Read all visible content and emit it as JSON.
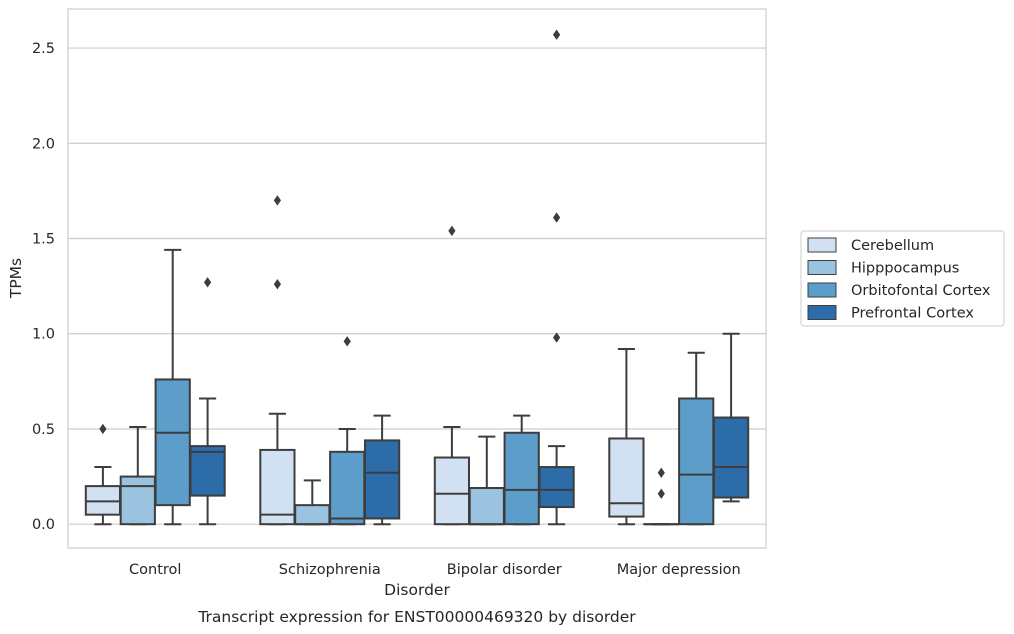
{
  "chart_data": {
    "type": "box",
    "caption": "Transcript expression for ENST00000469320 by disorder",
    "xlabel": "Disorder",
    "ylabel": "TPMs",
    "ylim": [
      -0.125,
      2.705
    ],
    "yticks": [
      "0.0",
      "0.5",
      "1.0",
      "1.5",
      "2.0",
      "2.5"
    ],
    "grid": true,
    "legend_position": "right",
    "categories": [
      "Control",
      "Schizophrenia",
      "Bipolar disorder",
      "Major depression"
    ],
    "series": [
      {
        "name": "Cerebellum",
        "color": "#d1e1f1",
        "boxes": [
          {
            "q1": 0.05,
            "median": 0.12,
            "q3": 0.2,
            "whisker_low": 0.0,
            "whisker_high": 0.3,
            "outliers": [
              0.5
            ]
          },
          {
            "q1": 0.0,
            "median": 0.05,
            "q3": 0.39,
            "whisker_low": 0.0,
            "whisker_high": 0.58,
            "outliers": [
              1.26,
              1.7
            ]
          },
          {
            "q1": 0.0,
            "median": 0.16,
            "q3": 0.35,
            "whisker_low": 0.0,
            "whisker_high": 0.51,
            "outliers": [
              1.54
            ]
          },
          {
            "q1": 0.04,
            "median": 0.11,
            "q3": 0.45,
            "whisker_low": 0.0,
            "whisker_high": 0.92,
            "outliers": []
          }
        ]
      },
      {
        "name": "Hipppocampus",
        "color": "#9bc2de",
        "boxes": [
          {
            "q1": 0.0,
            "median": 0.2,
            "q3": 0.25,
            "whisker_low": 0.0,
            "whisker_high": 0.51,
            "outliers": []
          },
          {
            "q1": 0.0,
            "median": 0.0,
            "q3": 0.1,
            "whisker_low": 0.0,
            "whisker_high": 0.23,
            "outliers": []
          },
          {
            "q1": 0.0,
            "median": 0.0,
            "q3": 0.19,
            "whisker_low": 0.0,
            "whisker_high": 0.46,
            "outliers": []
          },
          {
            "q1": 0.0,
            "median": 0.0,
            "q3": 0.0,
            "whisker_low": 0.0,
            "whisker_high": 0.0,
            "outliers": [
              0.16,
              0.27
            ]
          }
        ]
      },
      {
        "name": "Orbitofontal Cortex",
        "color": "#5c9ec9",
        "boxes": [
          {
            "q1": 0.1,
            "median": 0.48,
            "q3": 0.76,
            "whisker_low": 0.0,
            "whisker_high": 1.44,
            "outliers": []
          },
          {
            "q1": 0.0,
            "median": 0.03,
            "q3": 0.38,
            "whisker_low": 0.0,
            "whisker_high": 0.5,
            "outliers": [
              0.96
            ]
          },
          {
            "q1": 0.0,
            "median": 0.18,
            "q3": 0.48,
            "whisker_low": 0.0,
            "whisker_high": 0.57,
            "outliers": []
          },
          {
            "q1": 0.0,
            "median": 0.26,
            "q3": 0.66,
            "whisker_low": 0.0,
            "whisker_high": 0.9,
            "outliers": []
          }
        ]
      },
      {
        "name": "Prefrontal Cortex",
        "color": "#2b6ca9",
        "boxes": [
          {
            "q1": 0.15,
            "median": 0.38,
            "q3": 0.41,
            "whisker_low": 0.0,
            "whisker_high": 0.66,
            "outliers": [
              1.27
            ]
          },
          {
            "q1": 0.03,
            "median": 0.27,
            "q3": 0.44,
            "whisker_low": 0.0,
            "whisker_high": 0.57,
            "outliers": []
          },
          {
            "q1": 0.09,
            "median": 0.18,
            "q3": 0.3,
            "whisker_low": 0.0,
            "whisker_high": 0.41,
            "outliers": [
              0.98,
              1.61,
              2.57
            ]
          },
          {
            "q1": 0.14,
            "median": 0.3,
            "q3": 0.56,
            "whisker_low": 0.12,
            "whisker_high": 1.0,
            "outliers": []
          }
        ]
      }
    ]
  }
}
